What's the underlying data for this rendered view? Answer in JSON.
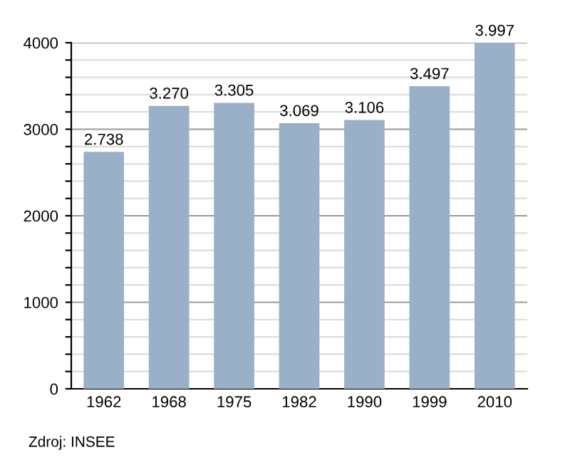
{
  "chart_data": {
    "type": "bar",
    "categories": [
      "1962",
      "1968",
      "1975",
      "1982",
      "1990",
      "1999",
      "2010"
    ],
    "values": [
      2738,
      3270,
      3305,
      3069,
      3106,
      3497,
      3997
    ],
    "value_labels": [
      "2.738",
      "3.270",
      "3.305",
      "3.069",
      "3.106",
      "3.497",
      "3.997"
    ],
    "color": "#9ab0c8",
    "ylim": [
      0,
      4000
    ],
    "yticks": [
      0,
      {
        "value": 200,
        "label": null
      },
      {
        "value": 400,
        "label": null
      },
      {
        "value": 600,
        "label": null
      },
      {
        "value": 800,
        "label": null
      },
      1000,
      {
        "value": 1200,
        "label": null
      },
      {
        "value": 1400,
        "label": null
      },
      {
        "value": 1600,
        "label": null
      },
      {
        "value": 1800,
        "label": null
      },
      2000,
      {
        "value": 2200,
        "label": null
      },
      {
        "value": 2400,
        "label": null
      },
      {
        "value": 2600,
        "label": null
      },
      {
        "value": 2800,
        "label": null
      },
      3000,
      {
        "value": 3200,
        "label": null
      },
      {
        "value": 3400,
        "label": null
      },
      {
        "value": 3600,
        "label": null
      },
      {
        "value": 3800,
        "label": null
      },
      4000
    ],
    "grid": "y",
    "annotations": [
      "Zdroj: INSEE"
    ]
  }
}
